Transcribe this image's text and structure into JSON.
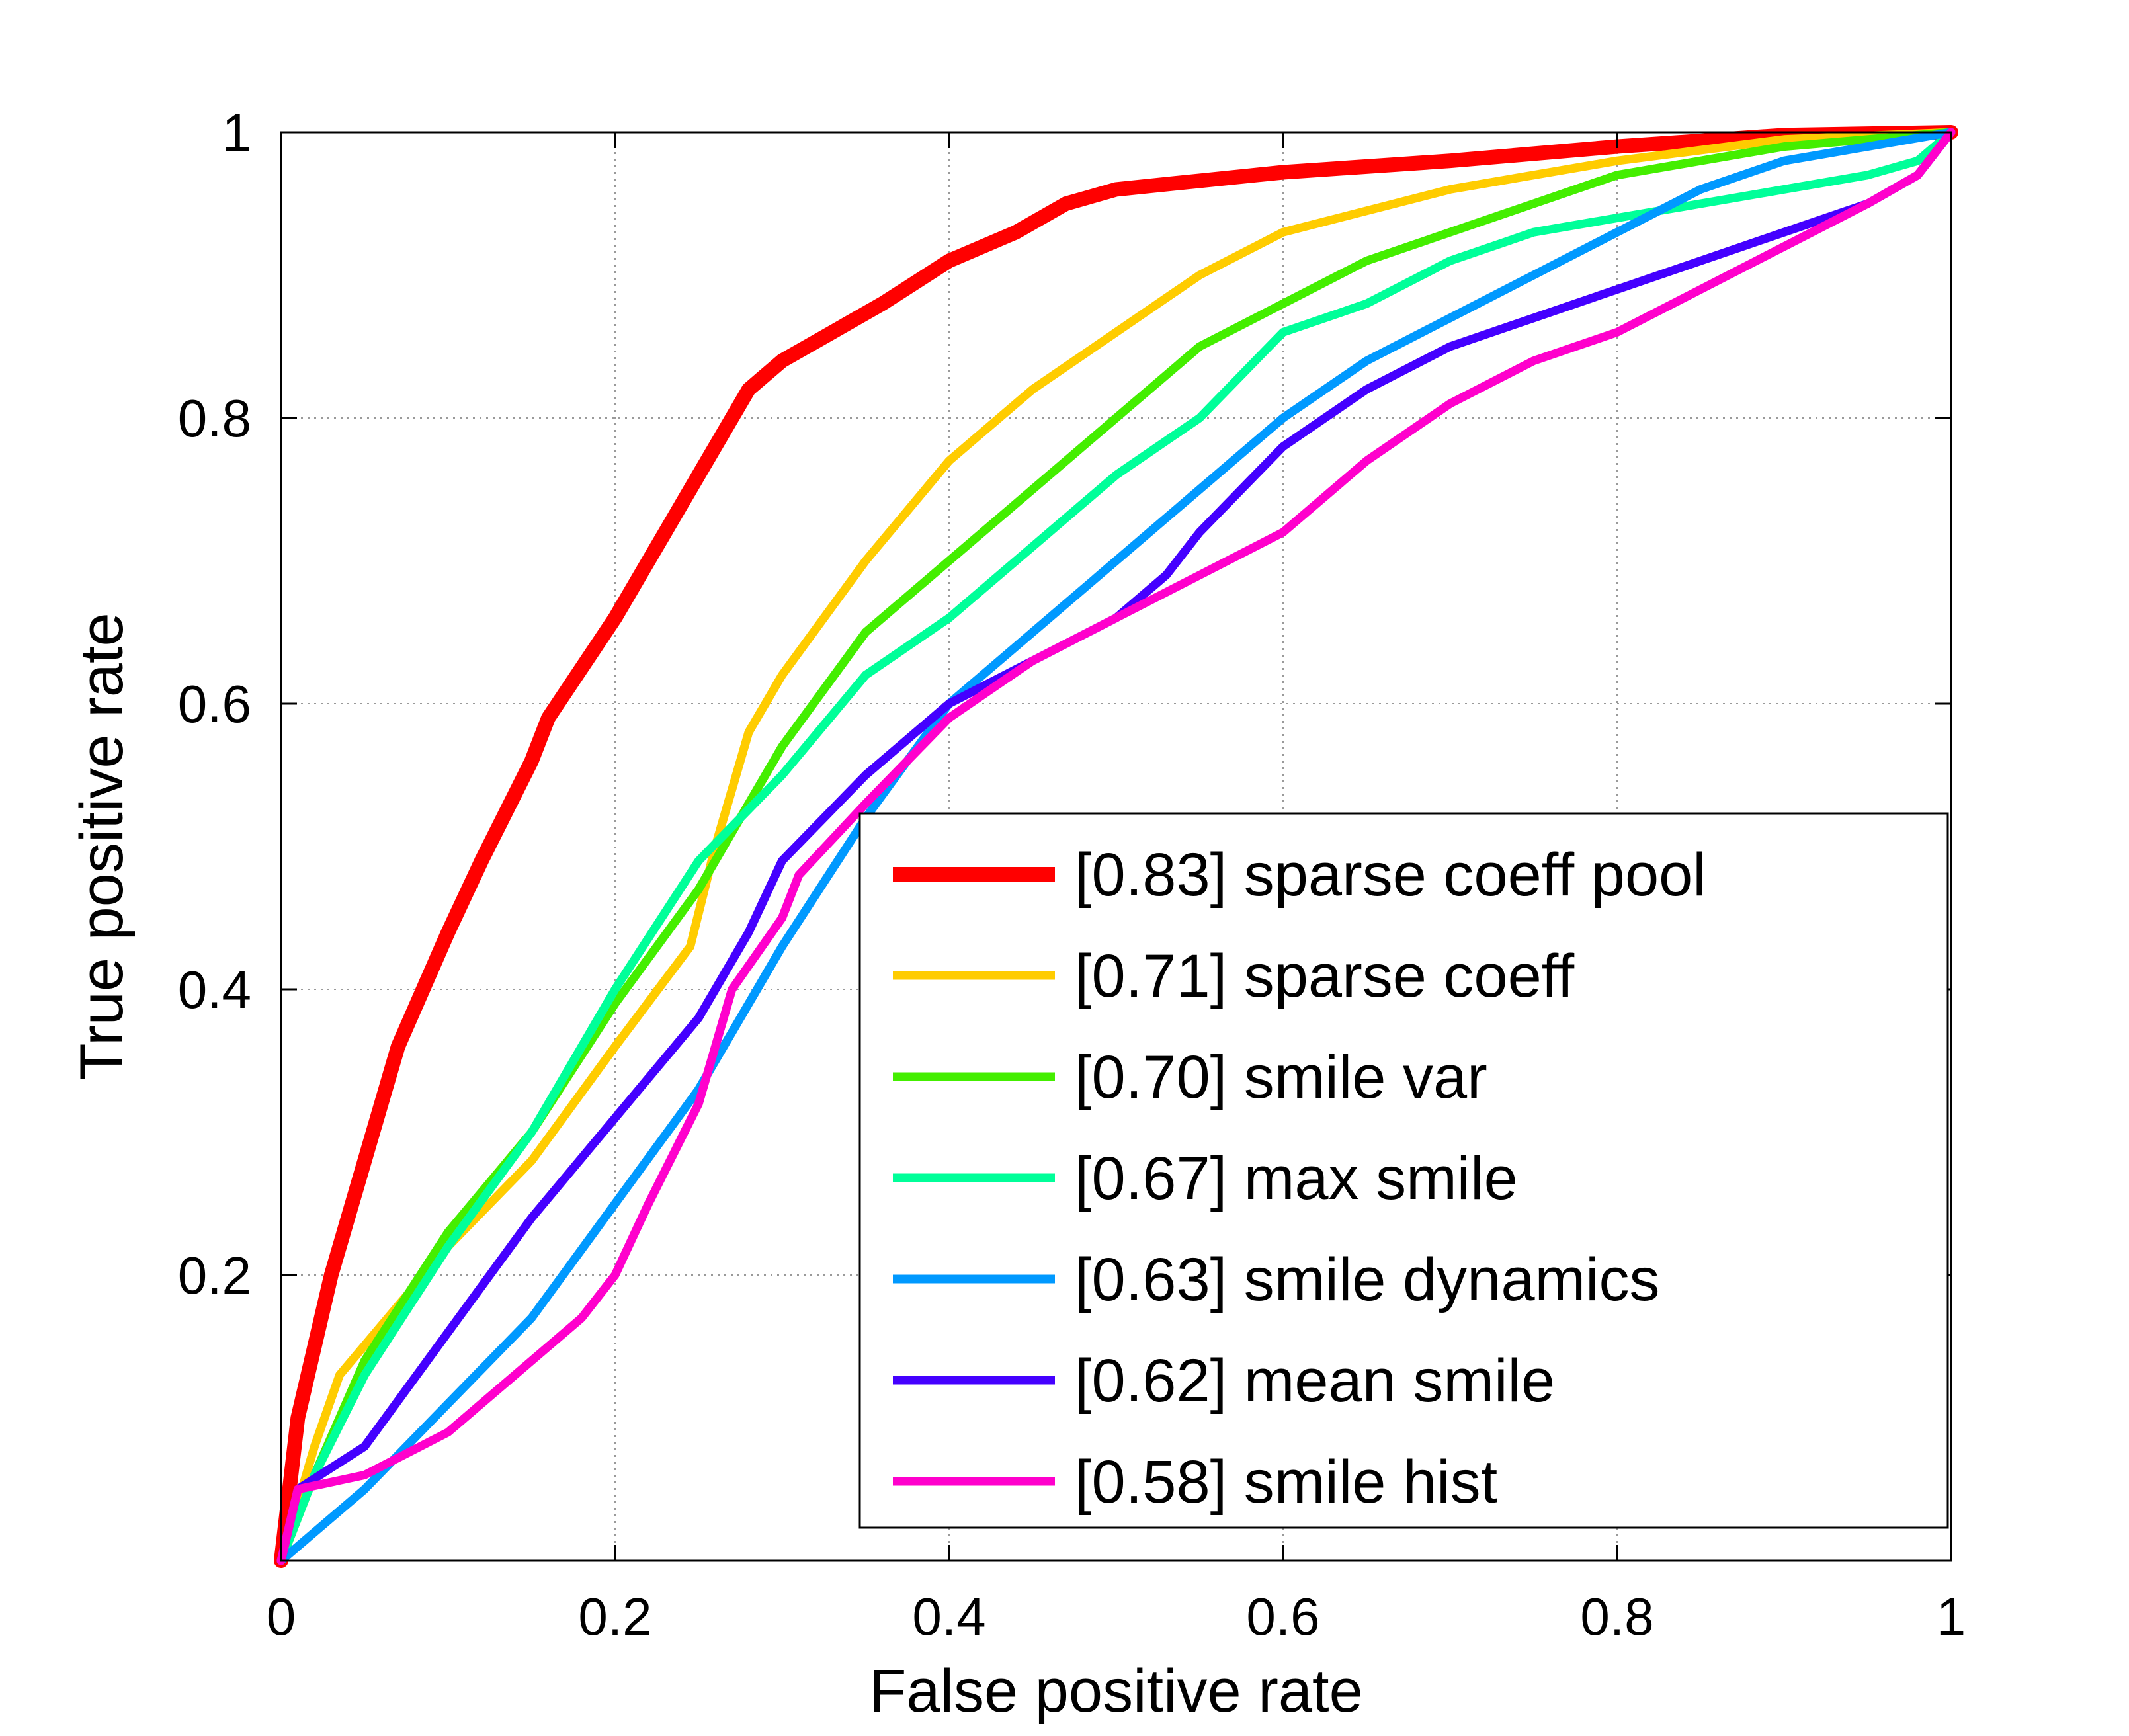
{
  "chart_data": {
    "type": "line",
    "title": "",
    "xlabel": "False positive rate",
    "ylabel": "True positive rate",
    "xlim": [
      0,
      1
    ],
    "ylim": [
      0,
      1
    ],
    "xticks": [
      0,
      0.2,
      0.4,
      0.6,
      0.8,
      1
    ],
    "yticks": [
      0.2,
      0.4,
      0.6,
      0.8,
      1
    ],
    "xtick_labels": [
      "0",
      "0.2",
      "0.4",
      "0.6",
      "0.8",
      "1"
    ],
    "ytick_labels": [
      "0.2",
      "0.4",
      "0.6",
      "0.8",
      "1"
    ],
    "grid": true,
    "legend_position": "bottom-right",
    "series": [
      {
        "name": "[0.83] sparse coeff pool",
        "color": "#ff0000",
        "x": [
          0,
          0.01,
          0.03,
          0.05,
          0.07,
          0.1,
          0.12,
          0.15,
          0.16,
          0.2,
          0.24,
          0.28,
          0.3,
          0.33,
          0.36,
          0.4,
          0.44,
          0.47,
          0.5,
          0.55,
          0.6,
          0.7,
          0.8,
          0.9,
          1
        ],
        "y": [
          0,
          0.1,
          0.2,
          0.28,
          0.36,
          0.44,
          0.49,
          0.56,
          0.59,
          0.66,
          0.74,
          0.82,
          0.84,
          0.86,
          0.88,
          0.91,
          0.93,
          0.95,
          0.96,
          0.966,
          0.972,
          0.98,
          0.99,
          0.998,
          1
        ]
      },
      {
        "name": "[0.71] sparse coeff",
        "color": "#ffcc00",
        "x": [
          0,
          0.02,
          0.035,
          0.1,
          0.15,
          0.2,
          0.245,
          0.26,
          0.28,
          0.3,
          0.35,
          0.4,
          0.45,
          0.5,
          0.55,
          0.6,
          0.7,
          0.8,
          0.9,
          1
        ],
        "y": [
          0,
          0.08,
          0.13,
          0.22,
          0.28,
          0.36,
          0.43,
          0.5,
          0.58,
          0.62,
          0.7,
          0.77,
          0.82,
          0.86,
          0.9,
          0.93,
          0.96,
          0.98,
          0.995,
          1
        ]
      },
      {
        "name": "[0.70] smile var",
        "color": "#44ee00",
        "x": [
          0,
          0.02,
          0.05,
          0.1,
          0.15,
          0.2,
          0.25,
          0.3,
          0.35,
          0.4,
          0.45,
          0.5,
          0.55,
          0.6,
          0.65,
          0.7,
          0.75,
          0.8,
          0.9,
          1
        ],
        "y": [
          0,
          0.06,
          0.14,
          0.23,
          0.3,
          0.39,
          0.47,
          0.57,
          0.65,
          0.7,
          0.75,
          0.8,
          0.85,
          0.88,
          0.91,
          0.93,
          0.95,
          0.97,
          0.99,
          1
        ]
      },
      {
        "name": "[0.67] max smile",
        "color": "#00ff99",
        "x": [
          0,
          0.02,
          0.05,
          0.1,
          0.15,
          0.2,
          0.25,
          0.3,
          0.35,
          0.4,
          0.45,
          0.5,
          0.55,
          0.6,
          0.65,
          0.7,
          0.75,
          0.8,
          0.85,
          0.9,
          0.95,
          0.98,
          1
        ],
        "y": [
          0,
          0.06,
          0.13,
          0.22,
          0.3,
          0.4,
          0.49,
          0.55,
          0.62,
          0.66,
          0.71,
          0.76,
          0.8,
          0.86,
          0.88,
          0.91,
          0.93,
          0.94,
          0.95,
          0.96,
          0.97,
          0.98,
          1
        ]
      },
      {
        "name": "[0.63] smile dynamics",
        "color": "#0099ff",
        "x": [
          0,
          0.02,
          0.05,
          0.1,
          0.15,
          0.2,
          0.25,
          0.3,
          0.35,
          0.4,
          0.45,
          0.5,
          0.55,
          0.6,
          0.65,
          0.7,
          0.75,
          0.8,
          0.85,
          0.9,
          0.95,
          1
        ],
        "y": [
          0,
          0.02,
          0.05,
          0.11,
          0.17,
          0.25,
          0.33,
          0.43,
          0.52,
          0.6,
          0.65,
          0.7,
          0.75,
          0.8,
          0.84,
          0.87,
          0.9,
          0.93,
          0.96,
          0.98,
          0.99,
          1
        ]
      },
      {
        "name": "[0.62] mean smile",
        "color": "#4400ff",
        "x": [
          0,
          0.01,
          0.05,
          0.1,
          0.15,
          0.2,
          0.25,
          0.28,
          0.3,
          0.35,
          0.4,
          0.45,
          0.5,
          0.53,
          0.55,
          0.6,
          0.65,
          0.7,
          0.75,
          0.8,
          0.85,
          0.9,
          0.95,
          0.98,
          1
        ],
        "y": [
          0,
          0.05,
          0.08,
          0.16,
          0.24,
          0.31,
          0.38,
          0.44,
          0.49,
          0.55,
          0.6,
          0.63,
          0.66,
          0.69,
          0.72,
          0.78,
          0.82,
          0.85,
          0.87,
          0.89,
          0.91,
          0.93,
          0.95,
          0.97,
          1
        ]
      },
      {
        "name": "[0.58] smile hist",
        "color": "#ff00cc",
        "x": [
          0,
          0.01,
          0.05,
          0.1,
          0.15,
          0.18,
          0.2,
          0.22,
          0.25,
          0.27,
          0.3,
          0.31,
          0.35,
          0.4,
          0.45,
          0.5,
          0.55,
          0.6,
          0.65,
          0.7,
          0.75,
          0.8,
          0.85,
          0.9,
          0.95,
          0.98,
          1
        ],
        "y": [
          0,
          0.05,
          0.06,
          0.09,
          0.14,
          0.17,
          0.2,
          0.25,
          0.32,
          0.4,
          0.45,
          0.48,
          0.53,
          0.59,
          0.63,
          0.66,
          0.69,
          0.72,
          0.77,
          0.81,
          0.84,
          0.86,
          0.89,
          0.92,
          0.95,
          0.97,
          1
        ]
      }
    ]
  }
}
